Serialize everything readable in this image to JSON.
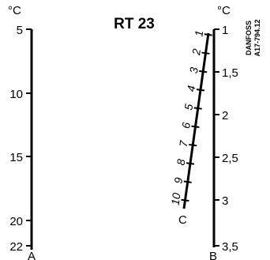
{
  "title": "RT 23",
  "unit": "°C",
  "scale_a": {
    "label": "A",
    "ticks": [
      "5",
      "10",
      "15",
      "20",
      "22"
    ]
  },
  "scale_b": {
    "label": "B",
    "ticks": [
      "1",
      "1,5",
      "2",
      "2,5",
      "3",
      "3,5"
    ]
  },
  "scale_c": {
    "label": "C",
    "ticks": [
      "1",
      "2",
      "3",
      "4",
      "5",
      "6",
      "7",
      "8",
      "9",
      "10"
    ]
  },
  "vendor": {
    "line1": "DANFOSS",
    "line2": "A17-794.12"
  }
}
